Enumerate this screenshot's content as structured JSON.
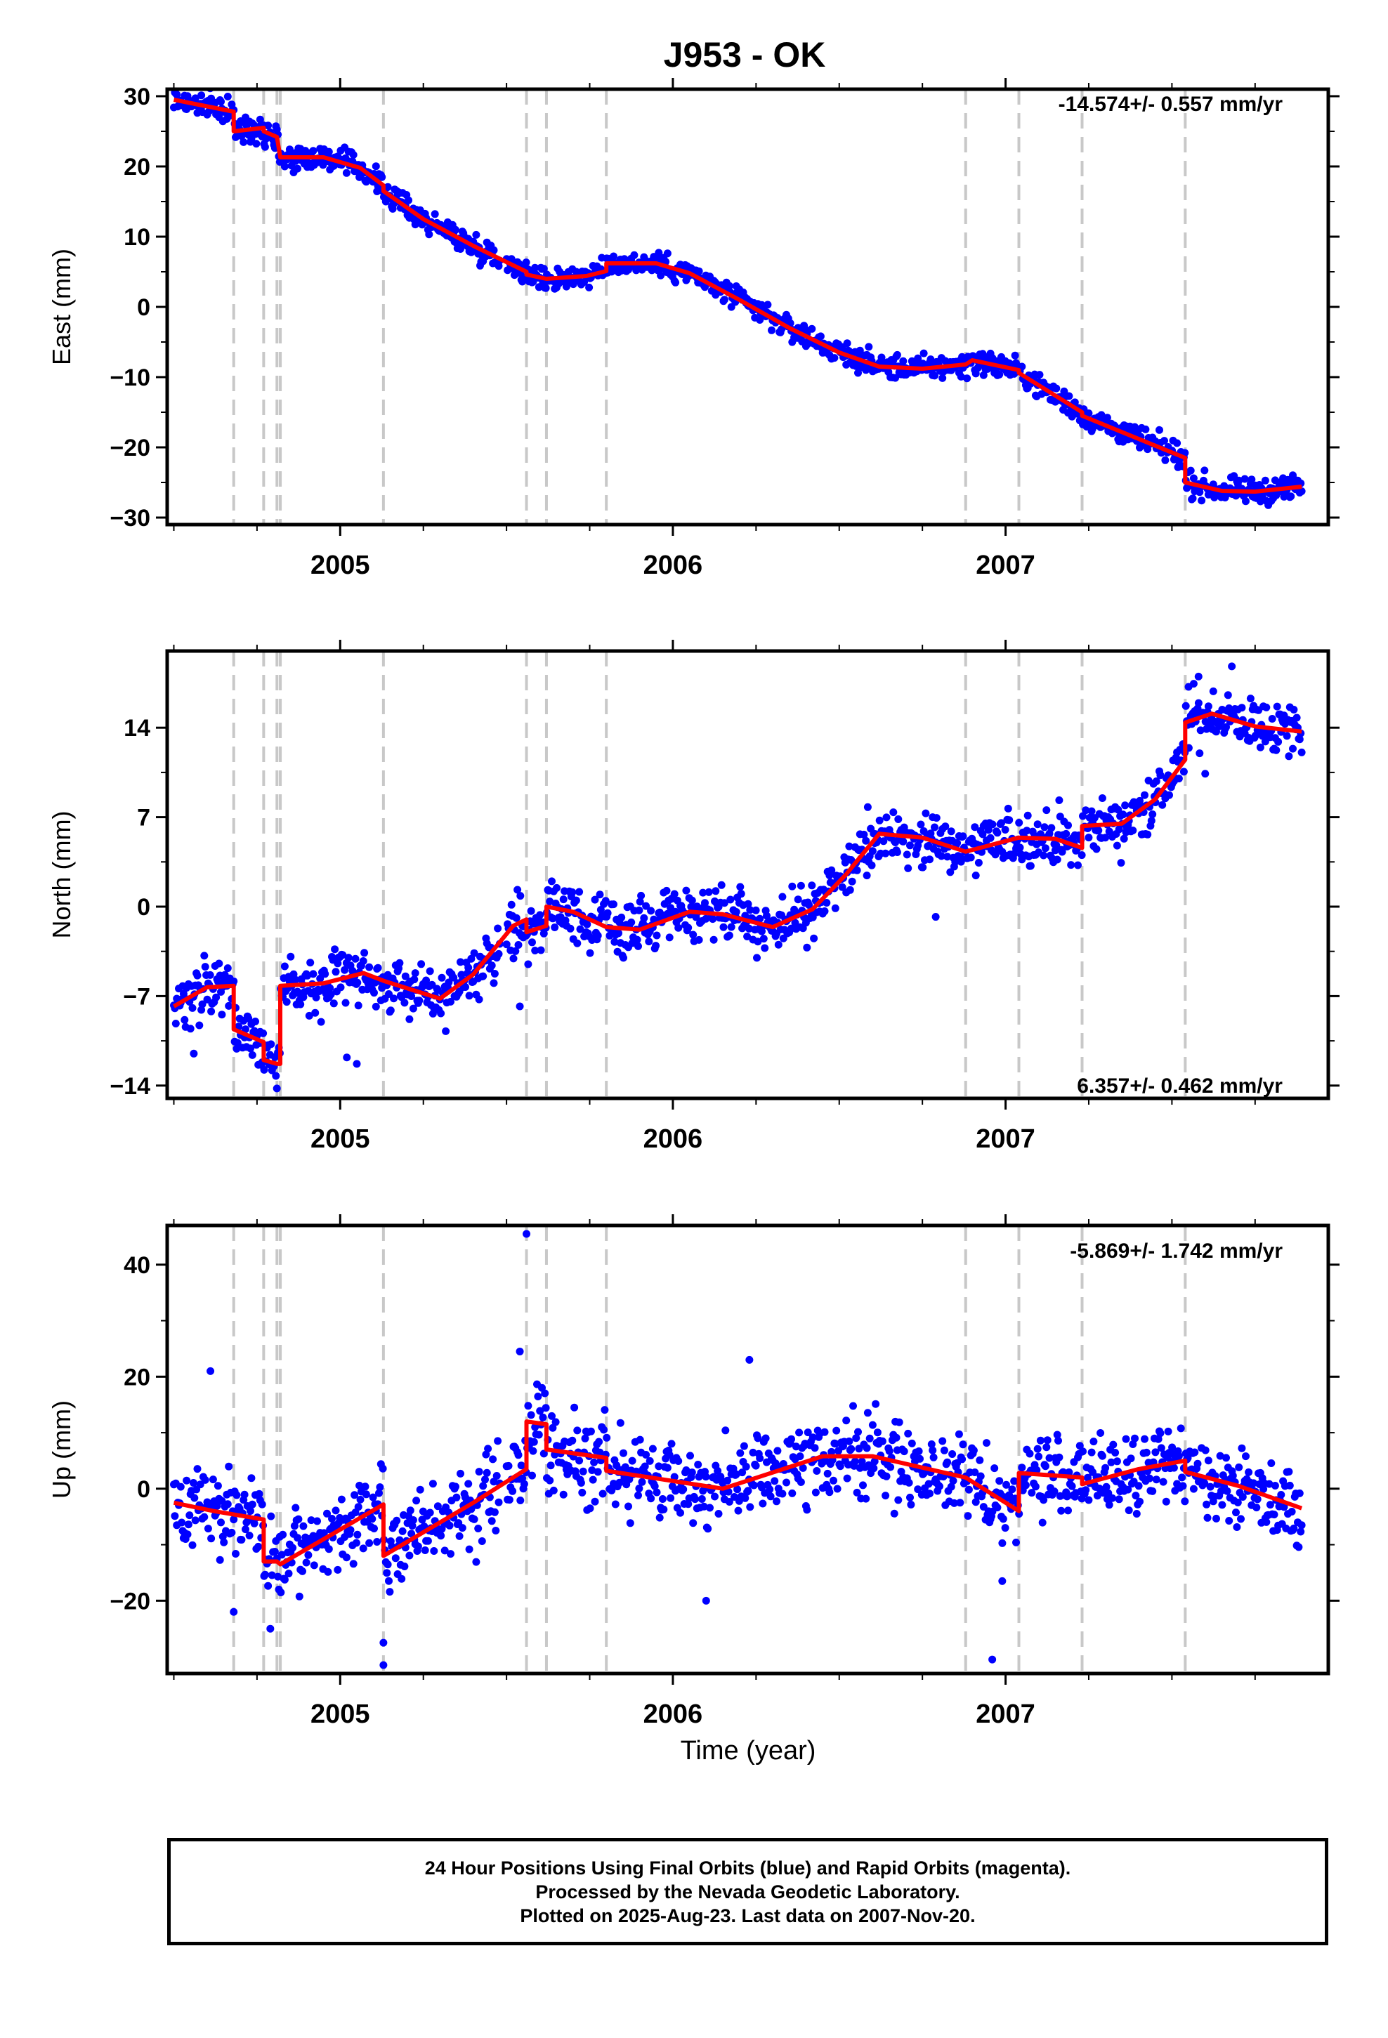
{
  "title": "J953 - OK",
  "xlabel": "Time (year)",
  "caption": [
    "24 Hour Positions Using Final Orbits (blue) and Rapid Orbits (magenta).",
    "Processed by the Nevada Geodetic Laboratory.",
    "Plotted on 2025-Aug-23. Last data on 2007-Nov-20."
  ],
  "colors": {
    "points": "#0000ff",
    "model": "#ff0000",
    "events": "#c8c8c8",
    "frame": "#000000"
  },
  "chart_data": [
    {
      "type": "scatter",
      "ylabel": "East (mm)",
      "rate": "-14.574+/- 0.557 mm/yr",
      "xlim": [
        2004.48,
        2007.97
      ],
      "ylim": [
        -31,
        31
      ],
      "yticks": [
        30,
        20,
        10,
        0,
        -10,
        -20,
        -30
      ],
      "xticks": [
        2005,
        2006,
        2007
      ],
      "event_lines": [
        2004.68,
        2004.77,
        2004.81,
        2004.82,
        2005.13,
        2005.56,
        2005.62,
        2005.8,
        2006.88,
        2007.04,
        2007.23,
        2007.54
      ],
      "model": {
        "x": [
          2004.5,
          2004.68,
          2004.68,
          2004.77,
          2004.77,
          2004.81,
          2004.82,
          2004.95,
          2005.06,
          2005.13,
          2005.13,
          2005.25,
          2005.4,
          2005.56,
          2005.56,
          2005.62,
          2005.62,
          2005.74,
          2005.8,
          2005.8,
          2005.95,
          2006.05,
          2006.2,
          2006.35,
          2006.5,
          2006.62,
          2006.75,
          2006.88,
          2006.9,
          2007.04,
          2007.04,
          2007.23,
          2007.23,
          2007.4,
          2007.54,
          2007.54,
          2007.65,
          2007.75,
          2007.89
        ],
        "y": [
          29.5,
          27.8,
          25.0,
          25.5,
          25.0,
          24.2,
          21.3,
          21.3,
          19.8,
          17.3,
          16.5,
          12.5,
          8.7,
          5.0,
          4.6,
          4.0,
          4.0,
          4.4,
          5.1,
          6.2,
          6.2,
          4.8,
          1.0,
          -3.0,
          -6.5,
          -8.5,
          -8.8,
          -8.2,
          -7.6,
          -9.0,
          -9.4,
          -15.0,
          -15.5,
          -18.8,
          -21.5,
          -25.0,
          -26.2,
          -26.3,
          -25.6
        ]
      },
      "noise": 1.2,
      "outliers": []
    },
    {
      "type": "scatter",
      "ylabel": "North (mm)",
      "rate": "6.357+/- 0.462 mm/yr",
      "xlim": [
        2004.48,
        2007.97
      ],
      "ylim": [
        -15,
        20
      ],
      "yticks": [
        14,
        7,
        0,
        -7,
        -14
      ],
      "xticks": [
        2005,
        2006,
        2007
      ],
      "event_lines": [
        2004.68,
        2004.77,
        2004.81,
        2004.82,
        2005.13,
        2005.56,
        2005.62,
        2005.8,
        2006.88,
        2007.04,
        2007.23,
        2007.54
      ],
      "model": {
        "x": [
          2004.5,
          2004.6,
          2004.68,
          2004.68,
          2004.77,
          2004.77,
          2004.81,
          2004.82,
          2004.82,
          2004.95,
          2005.07,
          2005.13,
          2005.13,
          2005.3,
          2005.4,
          2005.52,
          2005.56,
          2005.56,
          2005.62,
          2005.62,
          2005.7,
          2005.8,
          2005.8,
          2005.9,
          2006.05,
          2006.15,
          2006.3,
          2006.42,
          2006.52,
          2006.62,
          2006.75,
          2006.88,
          2006.88,
          2007.04,
          2007.04,
          2007.15,
          2007.23,
          2007.23,
          2007.35,
          2007.45,
          2007.54,
          2007.54,
          2007.62,
          2007.75,
          2007.89
        ],
        "y": [
          -7.8,
          -6.3,
          -6.2,
          -9.6,
          -10.6,
          -12.0,
          -12.3,
          -12.3,
          -6.2,
          -6.0,
          -5.2,
          -5.8,
          -5.8,
          -7.2,
          -5.3,
          -1.5,
          -1.0,
          -2.0,
          -1.5,
          0.0,
          -0.4,
          -1.6,
          -1.6,
          -1.8,
          -0.4,
          -0.6,
          -1.6,
          -0.2,
          2.5,
          5.7,
          5.4,
          4.3,
          4.3,
          5.4,
          5.4,
          5.3,
          4.6,
          6.3,
          6.5,
          8.4,
          11.5,
          14.4,
          15.1,
          14.1,
          13.7
        ]
      },
      "noise": 1.5,
      "outliers": [
        [
          2004.56,
          -11.5
        ],
        [
          2005.02,
          -11.8
        ],
        [
          2005.05,
          -12.3
        ],
        [
          2005.54,
          -7.8
        ],
        [
          2006.79,
          -0.8
        ],
        [
          2007.55,
          17.2
        ],
        [
          2007.58,
          18.0
        ],
        [
          2007.68,
          18.8
        ],
        [
          2007.6,
          10.4
        ]
      ]
    },
    {
      "type": "scatter",
      "ylabel": "Up (mm)",
      "rate": "-5.869+/- 1.742 mm/yr",
      "xlim": [
        2004.48,
        2007.97
      ],
      "ylim": [
        -33,
        47
      ],
      "yticks": [
        40,
        20,
        0,
        -20
      ],
      "xticks": [
        2005,
        2006,
        2007
      ],
      "event_lines": [
        2004.68,
        2004.77,
        2004.81,
        2004.82,
        2005.13,
        2005.56,
        2005.62,
        2005.8,
        2006.88,
        2007.04,
        2007.23,
        2007.54
      ],
      "model": {
        "x": [
          2004.5,
          2004.62,
          2004.77,
          2004.77,
          2004.81,
          2004.82,
          2005.13,
          2005.13,
          2005.4,
          2005.56,
          2005.56,
          2005.62,
          2005.62,
          2005.8,
          2005.8,
          2006.15,
          2006.45,
          2006.6,
          2006.88,
          2006.88,
          2007.04,
          2007.04,
          2007.23,
          2007.23,
          2007.4,
          2007.54,
          2007.54,
          2007.7,
          2007.89
        ],
        "y": [
          -2.5,
          -4.0,
          -5.5,
          -13.0,
          -13.0,
          -13.5,
          -2.8,
          -12.0,
          -2.5,
          3.5,
          12.0,
          11.5,
          7.0,
          5.5,
          3.2,
          0.0,
          5.8,
          5.8,
          2.0,
          2.0,
          -4.0,
          2.8,
          2.0,
          0.8,
          3.5,
          5.0,
          3.0,
          0.5,
          -3.5
        ]
      },
      "noise": 5.0,
      "outliers": [
        [
          2004.61,
          21.0
        ],
        [
          2005.56,
          45.5
        ],
        [
          2005.13,
          -27.5
        ],
        [
          2005.13,
          -31.5
        ],
        [
          2006.96,
          -30.5
        ],
        [
          2006.99,
          -16.5
        ],
        [
          2006.1,
          -20.0
        ],
        [
          2004.79,
          -25.0
        ],
        [
          2004.68,
          -22.0
        ],
        [
          2005.54,
          24.5
        ],
        [
          2006.23,
          23.0
        ]
      ]
    }
  ]
}
